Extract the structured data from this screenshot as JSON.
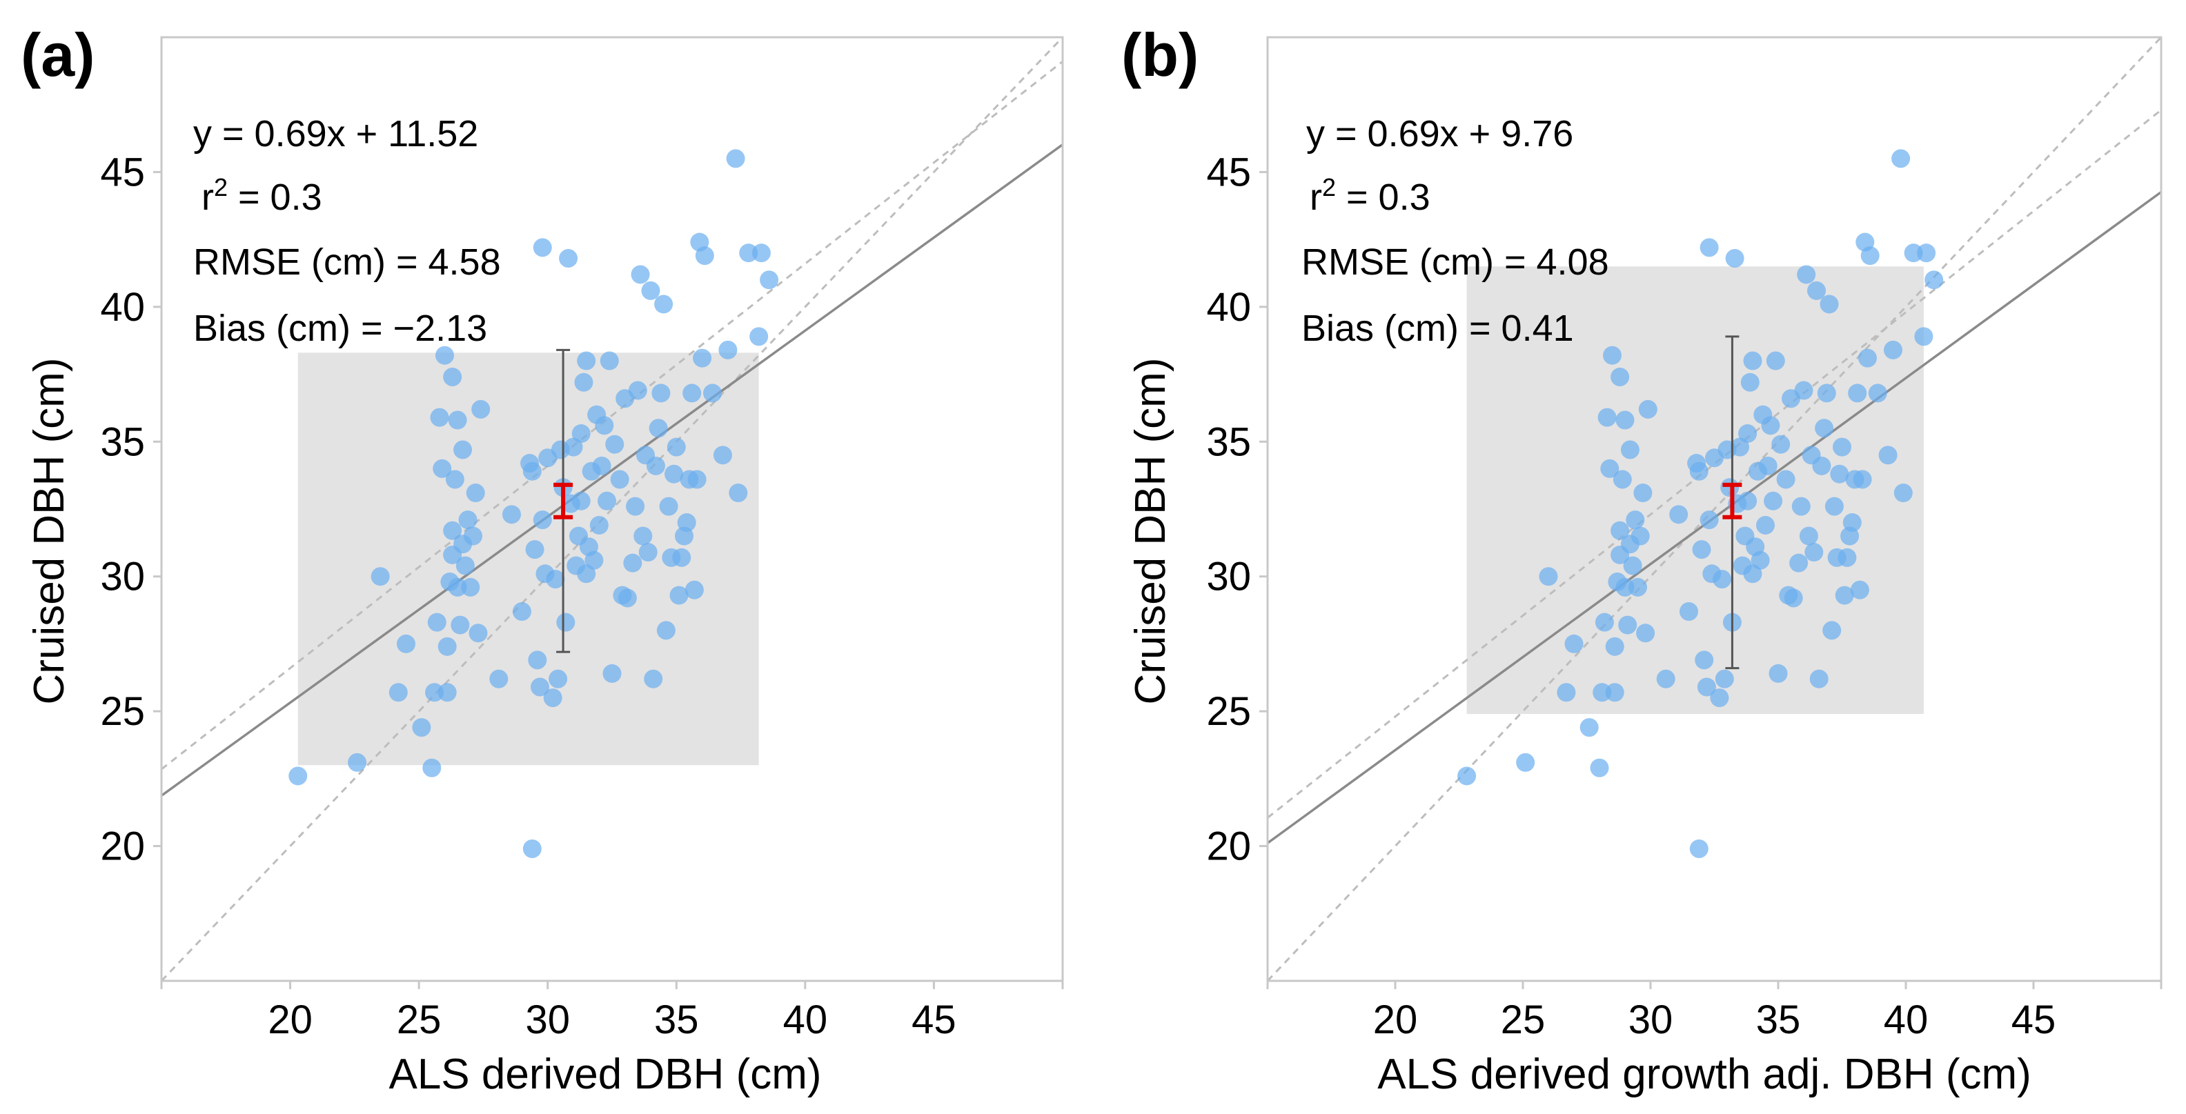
{
  "chart_data": [
    {
      "type": "scatter",
      "panel": "(a)",
      "xlabel": "ALS derived DBH (cm)",
      "ylabel": "Cruised DBH (cm)",
      "xlim": [
        15,
        50
      ],
      "ylim": [
        15,
        50
      ],
      "xticks": [
        20,
        25,
        30,
        35,
        40,
        45
      ],
      "yticks": [
        20,
        25,
        30,
        35,
        40,
        45
      ],
      "annotations": {
        "equation": "y = 0.69x + 11.52",
        "r2_label": "r",
        "r2_sup": "2",
        "r2_value": " = 0.3",
        "rmse": "RMSE (cm) = 4.58",
        "bias": "Bias (cm) = −2.13"
      },
      "fit_line": {
        "slope": 0.69,
        "intercept": 11.52
      },
      "one_to_one_line": {
        "slope": 1,
        "intercept": 0
      },
      "reference_line": {
        "slope": 0.75,
        "intercept": 11.6
      },
      "range_box": {
        "x": [
          20.3,
          38.2
        ],
        "y": [
          23.0,
          38.3
        ]
      },
      "spread_bar": {
        "x": 30.6,
        "y": [
          27.2,
          38.4
        ]
      },
      "mean_ci_bar": {
        "x": 30.6,
        "y": [
          32.2,
          33.4
        ]
      },
      "points": [
        [
          20.3,
          22.6
        ],
        [
          22.6,
          23.1
        ],
        [
          23.5,
          30.0
        ],
        [
          24.5,
          27.5
        ],
        [
          24.2,
          25.7
        ],
        [
          25.1,
          24.4
        ],
        [
          25.5,
          22.9
        ],
        [
          25.6,
          25.7
        ],
        [
          25.7,
          28.3
        ],
        [
          25.8,
          35.9
        ],
        [
          25.9,
          34.0
        ],
        [
          26.0,
          38.2
        ],
        [
          26.1,
          25.7
        ],
        [
          26.1,
          27.4
        ],
        [
          26.2,
          29.8
        ],
        [
          26.3,
          30.8
        ],
        [
          26.3,
          31.7
        ],
        [
          26.3,
          37.4
        ],
        [
          26.4,
          33.6
        ],
        [
          26.5,
          29.6
        ],
        [
          26.5,
          35.8
        ],
        [
          26.6,
          28.2
        ],
        [
          26.7,
          31.2
        ],
        [
          26.7,
          34.7
        ],
        [
          26.8,
          30.4
        ],
        [
          26.9,
          32.1
        ],
        [
          27.0,
          29.6
        ],
        [
          27.1,
          31.5
        ],
        [
          27.2,
          33.1
        ],
        [
          27.3,
          27.9
        ],
        [
          27.4,
          36.2
        ],
        [
          28.1,
          26.2
        ],
        [
          28.6,
          32.3
        ],
        [
          29.0,
          28.7
        ],
        [
          29.3,
          34.2
        ],
        [
          29.4,
          33.9
        ],
        [
          29.5,
          31.0
        ],
        [
          29.6,
          26.9
        ],
        [
          29.7,
          25.9
        ],
        [
          29.8,
          32.1
        ],
        [
          29.9,
          30.1
        ],
        [
          30.0,
          34.4
        ],
        [
          30.2,
          25.5
        ],
        [
          30.3,
          29.9
        ],
        [
          30.4,
          26.2
        ],
        [
          30.5,
          34.7
        ],
        [
          30.6,
          33.3
        ],
        [
          30.7,
          28.3
        ],
        [
          30.8,
          41.8
        ],
        [
          30.9,
          32.7
        ],
        [
          31.0,
          34.8
        ],
        [
          31.1,
          30.4
        ],
        [
          31.2,
          31.5
        ],
        [
          31.3,
          32.8
        ],
        [
          31.3,
          35.3
        ],
        [
          31.4,
          37.2
        ],
        [
          31.5,
          30.1
        ],
        [
          31.5,
          38.0
        ],
        [
          31.6,
          31.1
        ],
        [
          31.7,
          33.9
        ],
        [
          31.8,
          30.6
        ],
        [
          31.9,
          36.0
        ],
        [
          32.0,
          31.9
        ],
        [
          32.1,
          34.1
        ],
        [
          32.2,
          35.6
        ],
        [
          32.3,
          32.8
        ],
        [
          32.4,
          38.0
        ],
        [
          32.5,
          26.4
        ],
        [
          32.6,
          34.9
        ],
        [
          32.8,
          33.6
        ],
        [
          32.9,
          29.3
        ],
        [
          33.0,
          36.6
        ],
        [
          33.1,
          29.2
        ],
        [
          33.3,
          30.5
        ],
        [
          33.4,
          32.6
        ],
        [
          33.5,
          36.9
        ],
        [
          33.6,
          41.2
        ],
        [
          33.7,
          31.5
        ],
        [
          33.8,
          34.5
        ],
        [
          33.9,
          30.9
        ],
        [
          34.0,
          40.6
        ],
        [
          34.1,
          26.2
        ],
        [
          34.2,
          34.1
        ],
        [
          34.3,
          35.5
        ],
        [
          34.4,
          36.8
        ],
        [
          34.5,
          40.1
        ],
        [
          34.6,
          28.0
        ],
        [
          34.7,
          32.6
        ],
        [
          34.8,
          30.7
        ],
        [
          34.9,
          33.8
        ],
        [
          35.0,
          34.8
        ],
        [
          35.1,
          29.3
        ],
        [
          35.2,
          30.7
        ],
        [
          35.3,
          31.5
        ],
        [
          35.4,
          32.0
        ],
        [
          35.5,
          33.6
        ],
        [
          35.6,
          36.8
        ],
        [
          35.7,
          29.5
        ],
        [
          35.8,
          33.6
        ],
        [
          35.9,
          42.4
        ],
        [
          36.0,
          38.1
        ],
        [
          36.1,
          41.9
        ],
        [
          36.4,
          36.8
        ],
        [
          36.8,
          34.5
        ],
        [
          37.0,
          38.4
        ],
        [
          37.3,
          45.5
        ],
        [
          37.4,
          33.1
        ],
        [
          37.8,
          42.0
        ],
        [
          38.2,
          38.9
        ],
        [
          38.3,
          42.0
        ],
        [
          38.6,
          41.0
        ],
        [
          29.4,
          19.9
        ],
        [
          29.8,
          42.2
        ]
      ]
    },
    {
      "type": "scatter",
      "panel": "(b)",
      "xlabel": "ALS derived growth adj. DBH (cm)",
      "ylabel": "Cruised DBH (cm)",
      "xlim": [
        15,
        50
      ],
      "ylim": [
        15,
        50
      ],
      "xticks": [
        20,
        25,
        30,
        35,
        40,
        45
      ],
      "yticks": [
        20,
        25,
        30,
        35,
        40,
        45
      ],
      "annotations": {
        "equation": "y = 0.69x + 9.76",
        "r2_label": "r",
        "r2_sup": "2",
        "r2_value": " = 0.3",
        "rmse": "RMSE (cm) = 4.08",
        "bias": "Bias (cm) = 0.41"
      },
      "fit_line": {
        "slope": 0.69,
        "intercept": 9.76
      },
      "one_to_one_line": {
        "slope": 1,
        "intercept": 0
      },
      "reference_line": {
        "slope": 0.75,
        "intercept": 9.8
      },
      "range_box": {
        "x": [
          22.8,
          40.7
        ],
        "y": [
          24.9,
          41.5
        ]
      },
      "spread_bar": {
        "x": 33.2,
        "y": [
          26.6,
          38.9
        ]
      },
      "mean_ci_bar": {
        "x": 33.2,
        "y": [
          32.2,
          33.4
        ]
      },
      "points": [
        [
          22.8,
          22.6
        ],
        [
          25.1,
          23.1
        ],
        [
          26.0,
          30.0
        ],
        [
          27.0,
          27.5
        ],
        [
          26.7,
          25.7
        ],
        [
          27.6,
          24.4
        ],
        [
          28.0,
          22.9
        ],
        [
          28.1,
          25.7
        ],
        [
          28.2,
          28.3
        ],
        [
          28.3,
          35.9
        ],
        [
          28.4,
          34.0
        ],
        [
          28.5,
          38.2
        ],
        [
          28.6,
          25.7
        ],
        [
          28.6,
          27.4
        ],
        [
          28.7,
          29.8
        ],
        [
          28.8,
          30.8
        ],
        [
          28.8,
          31.7
        ],
        [
          28.8,
          37.4
        ],
        [
          28.9,
          33.6
        ],
        [
          29.0,
          29.6
        ],
        [
          29.0,
          35.8
        ],
        [
          29.1,
          28.2
        ],
        [
          29.2,
          31.2
        ],
        [
          29.2,
          34.7
        ],
        [
          29.3,
          30.4
        ],
        [
          29.4,
          32.1
        ],
        [
          29.5,
          29.6
        ],
        [
          29.6,
          31.5
        ],
        [
          29.7,
          33.1
        ],
        [
          29.8,
          27.9
        ],
        [
          29.9,
          36.2
        ],
        [
          30.6,
          26.2
        ],
        [
          31.1,
          32.3
        ],
        [
          31.5,
          28.7
        ],
        [
          31.8,
          34.2
        ],
        [
          31.9,
          33.9
        ],
        [
          32.0,
          31.0
        ],
        [
          32.1,
          26.9
        ],
        [
          32.2,
          25.9
        ],
        [
          32.3,
          32.1
        ],
        [
          32.4,
          30.1
        ],
        [
          32.5,
          34.4
        ],
        [
          32.7,
          25.5
        ],
        [
          32.8,
          29.9
        ],
        [
          32.9,
          26.2
        ],
        [
          33.0,
          34.7
        ],
        [
          33.1,
          33.3
        ],
        [
          33.2,
          28.3
        ],
        [
          33.3,
          41.8
        ],
        [
          33.4,
          32.7
        ],
        [
          33.5,
          34.8
        ],
        [
          33.6,
          30.4
        ],
        [
          33.7,
          31.5
        ],
        [
          33.8,
          32.8
        ],
        [
          33.8,
          35.3
        ],
        [
          33.9,
          37.2
        ],
        [
          34.0,
          30.1
        ],
        [
          34.0,
          38.0
        ],
        [
          34.1,
          31.1
        ],
        [
          34.2,
          33.9
        ],
        [
          34.3,
          30.6
        ],
        [
          34.4,
          36.0
        ],
        [
          34.5,
          31.9
        ],
        [
          34.6,
          34.1
        ],
        [
          34.7,
          35.6
        ],
        [
          34.8,
          32.8
        ],
        [
          34.9,
          38.0
        ],
        [
          35.0,
          26.4
        ],
        [
          35.1,
          34.9
        ],
        [
          35.3,
          33.6
        ],
        [
          35.4,
          29.3
        ],
        [
          35.5,
          36.6
        ],
        [
          35.6,
          29.2
        ],
        [
          35.8,
          30.5
        ],
        [
          35.9,
          32.6
        ],
        [
          36.0,
          36.9
        ],
        [
          36.1,
          41.2
        ],
        [
          36.2,
          31.5
        ],
        [
          36.3,
          34.5
        ],
        [
          36.4,
          30.9
        ],
        [
          36.5,
          40.6
        ],
        [
          36.6,
          26.2
        ],
        [
          36.7,
          34.1
        ],
        [
          36.8,
          35.5
        ],
        [
          36.9,
          36.8
        ],
        [
          37.0,
          40.1
        ],
        [
          37.1,
          28.0
        ],
        [
          37.2,
          32.6
        ],
        [
          37.3,
          30.7
        ],
        [
          37.4,
          33.8
        ],
        [
          37.5,
          34.8
        ],
        [
          37.6,
          29.3
        ],
        [
          37.7,
          30.7
        ],
        [
          37.8,
          31.5
        ],
        [
          37.9,
          32.0
        ],
        [
          38.0,
          33.6
        ],
        [
          38.1,
          36.8
        ],
        [
          38.2,
          29.5
        ],
        [
          38.3,
          33.6
        ],
        [
          38.4,
          42.4
        ],
        [
          38.5,
          38.1
        ],
        [
          38.6,
          41.9
        ],
        [
          38.9,
          36.8
        ],
        [
          39.3,
          34.5
        ],
        [
          39.5,
          38.4
        ],
        [
          39.8,
          45.5
        ],
        [
          39.9,
          33.1
        ],
        [
          40.3,
          42.0
        ],
        [
          40.7,
          38.9
        ],
        [
          40.8,
          42.0
        ],
        [
          41.1,
          41.0
        ],
        [
          31.9,
          19.9
        ],
        [
          32.3,
          42.2
        ]
      ]
    }
  ],
  "colors": {
    "point": "#6aaef0",
    "range_box": "#e3e3e3",
    "fit_line": "#8a8a8a",
    "ref_line": "#bdbdbd",
    "spread_bar": "#555555",
    "ci_bar": "#e00000",
    "axis": "#c8c8c8"
  }
}
